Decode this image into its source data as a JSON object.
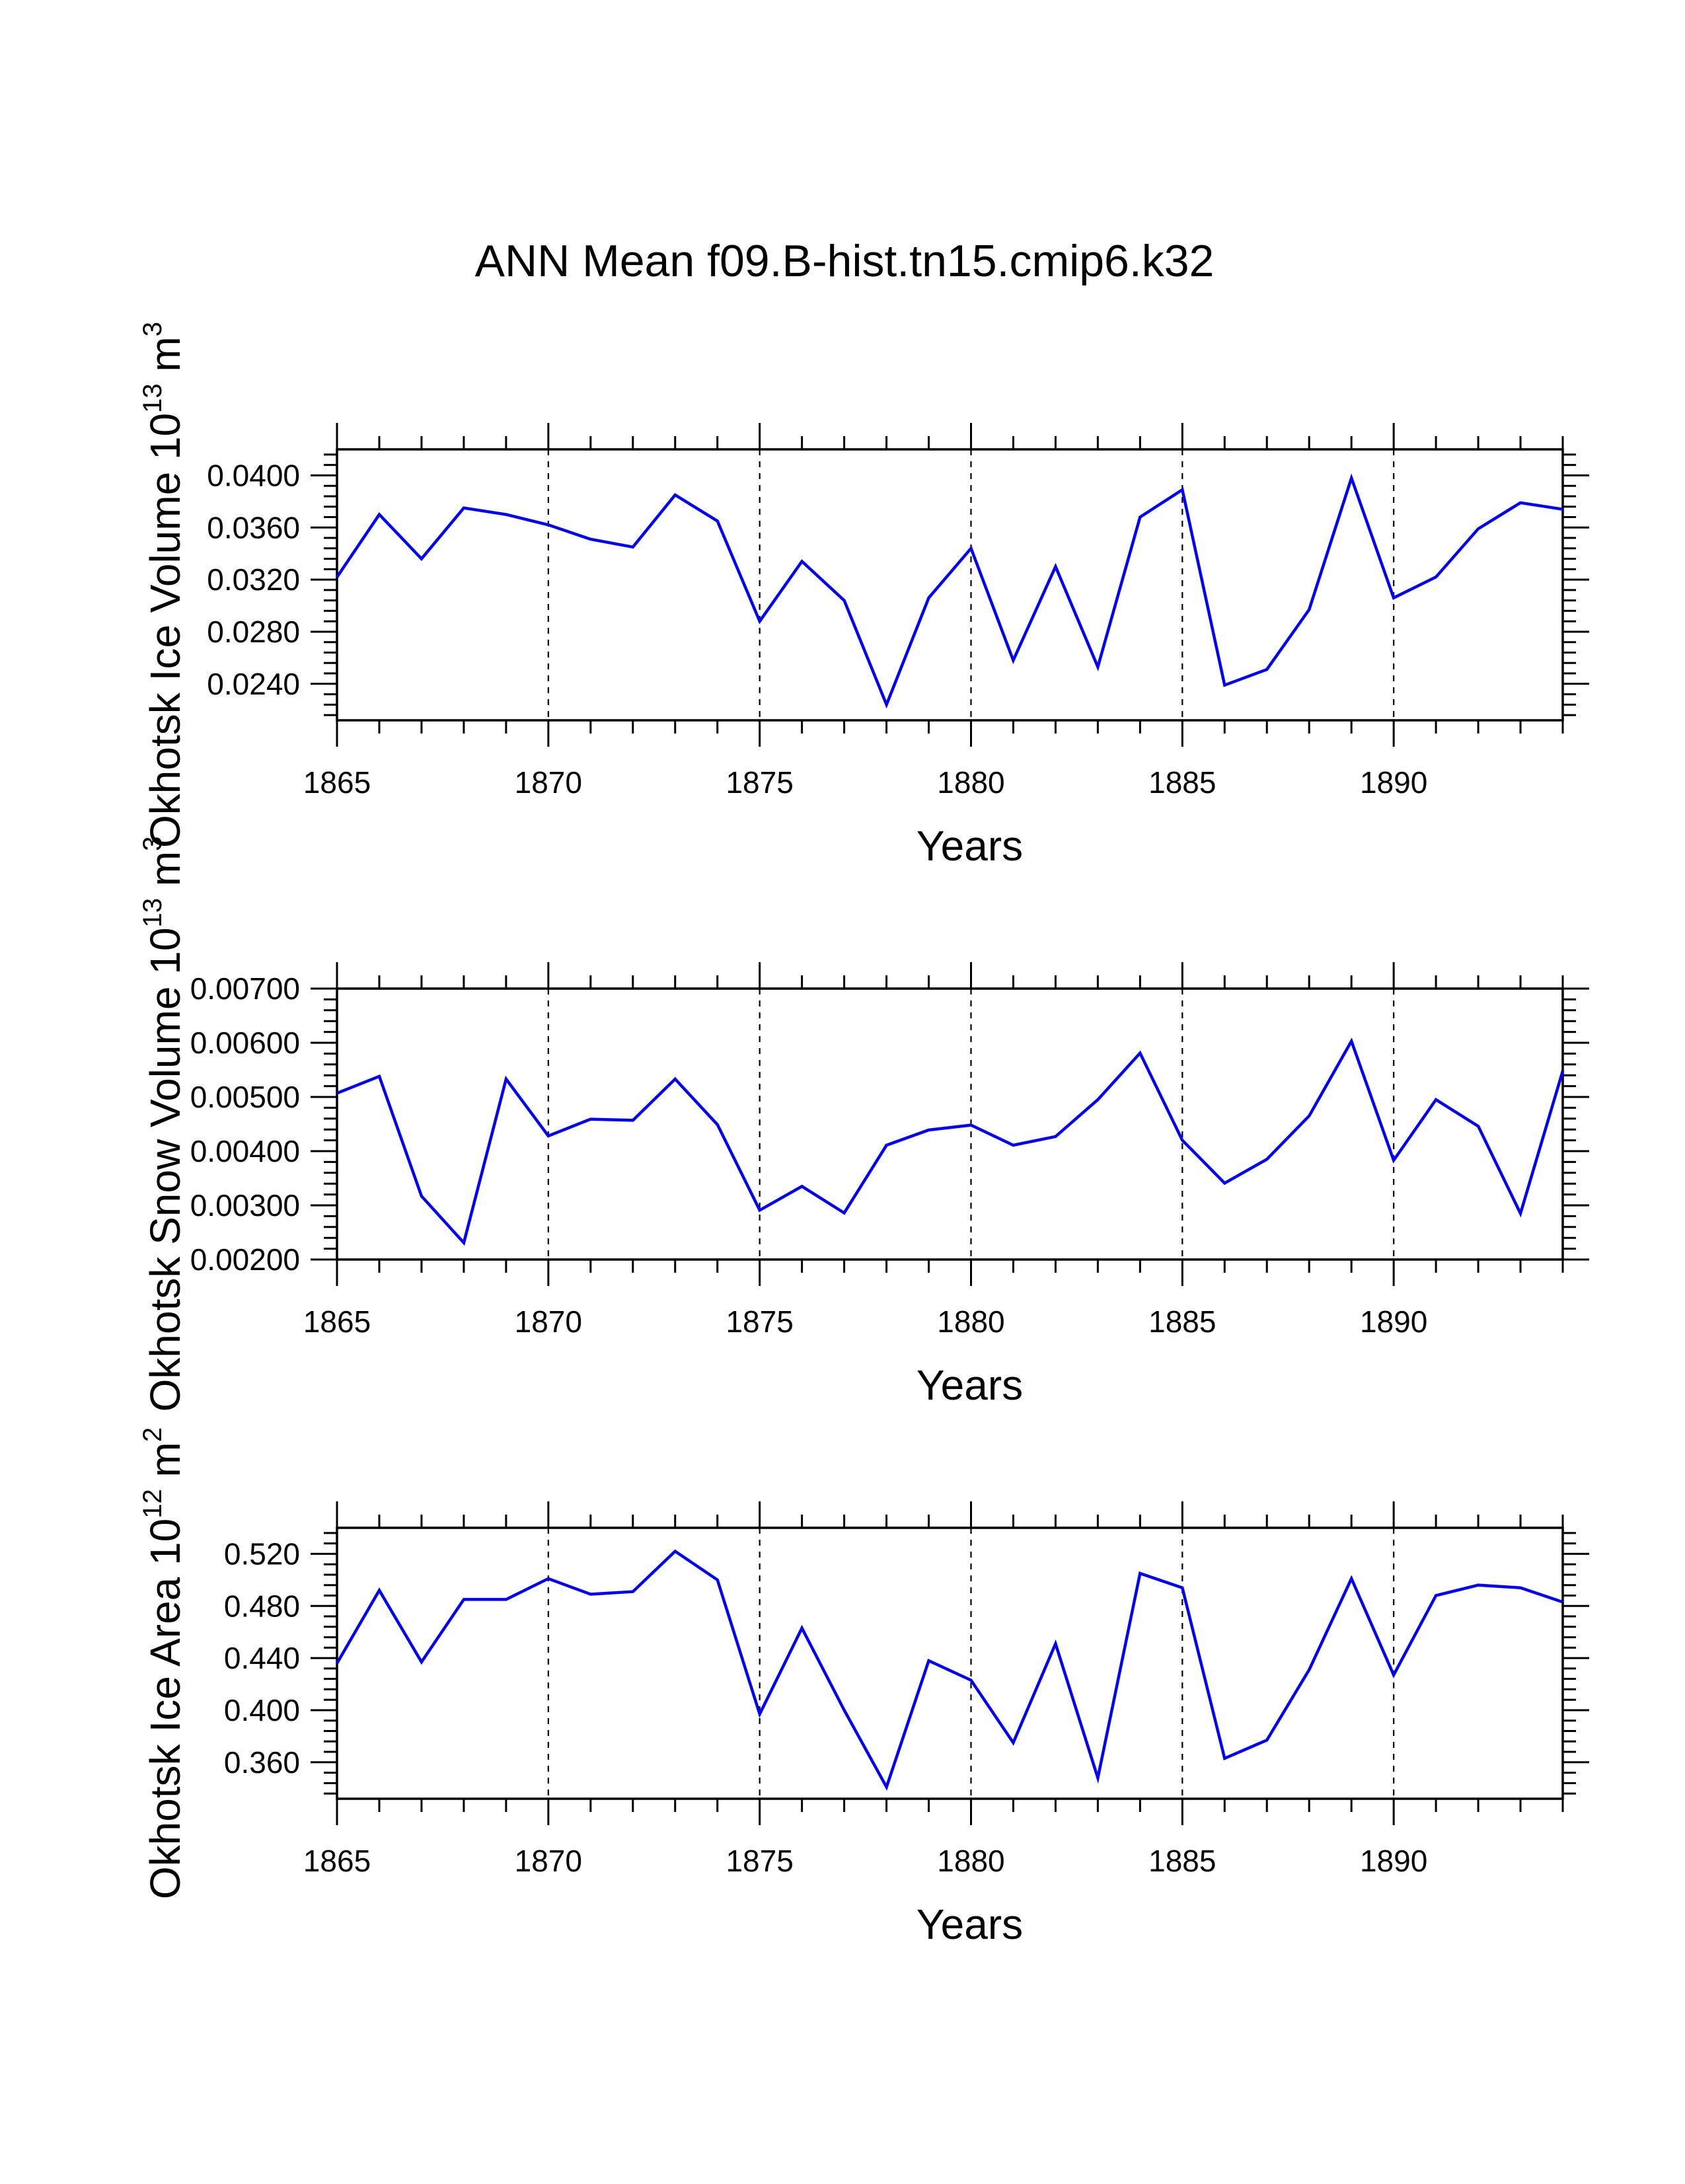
{
  "figure": {
    "title": "ANN Mean f09.B-hist.tn15.cmip6.k32",
    "line_color": "#0000ff"
  },
  "chart_data": [
    {
      "type": "line",
      "ylabel": "Okhotsk Ice Volume 10",
      "ylabel_exponent": "13",
      "ylabel_unit": "m",
      "ylabel_unit_power": "3",
      "xlabel": "Years",
      "xlim": [
        1865,
        1894
      ],
      "ylim": [
        0.0212,
        0.042
      ],
      "x_ticks": [
        1865,
        1870,
        1875,
        1880,
        1885,
        1890
      ],
      "y_ticks": [
        0.024,
        0.028,
        0.032,
        0.036,
        0.04
      ],
      "y_tick_labels": [
        "0.0240",
        "0.0280",
        "0.0320",
        "0.0360",
        "0.0400"
      ],
      "x": [
        1865,
        1866,
        1867,
        1868,
        1869,
        1870,
        1871,
        1872,
        1873,
        1874,
        1875,
        1876,
        1877,
        1878,
        1879,
        1880,
        1881,
        1882,
        1883,
        1884,
        1885,
        1886,
        1887,
        1888,
        1889,
        1890,
        1891,
        1892,
        1893,
        1894
      ],
      "values": [
        0.0322,
        0.037,
        0.0336,
        0.0375,
        0.037,
        0.0362,
        0.0351,
        0.0345,
        0.0385,
        0.0365,
        0.0288,
        0.0334,
        0.0304,
        0.0224,
        0.0306,
        0.0344,
        0.0258,
        0.033,
        0.0253,
        0.0368,
        0.0389,
        0.0239,
        0.0251,
        0.0297,
        0.0398,
        0.0306,
        0.0322,
        0.0359,
        0.0379,
        0.0374
      ]
    },
    {
      "type": "line",
      "ylabel": "Okhotsk Snow Volume 10",
      "ylabel_exponent": "13",
      "ylabel_unit": "m",
      "ylabel_unit_power": "3",
      "xlabel": "Years",
      "xlim": [
        1865,
        1894
      ],
      "ylim": [
        0.002,
        0.007
      ],
      "x_ticks": [
        1865,
        1870,
        1875,
        1880,
        1885,
        1890
      ],
      "y_ticks": [
        0.002,
        0.003,
        0.004,
        0.005,
        0.006,
        0.007
      ],
      "y_tick_labels": [
        "0.00200",
        "0.00300",
        "0.00400",
        "0.00500",
        "0.00600",
        "0.00700"
      ],
      "x": [
        1865,
        1866,
        1867,
        1868,
        1869,
        1870,
        1871,
        1872,
        1873,
        1874,
        1875,
        1876,
        1877,
        1878,
        1879,
        1880,
        1881,
        1882,
        1883,
        1884,
        1885,
        1886,
        1887,
        1888,
        1889,
        1890,
        1891,
        1892,
        1893,
        1894
      ],
      "values": [
        0.00507,
        0.00538,
        0.00317,
        0.00231,
        0.00533,
        0.00428,
        0.00459,
        0.00457,
        0.00533,
        0.00449,
        0.00291,
        0.00335,
        0.00286,
        0.00411,
        0.00439,
        0.00448,
        0.00411,
        0.00427,
        0.00495,
        0.00581,
        0.0042,
        0.00341,
        0.00385,
        0.00465,
        0.00603,
        0.00383,
        0.00495,
        0.00446,
        0.00285,
        0.00548
      ]
    },
    {
      "type": "line",
      "ylabel": "Okhotsk Ice Area 10",
      "ylabel_exponent": "12",
      "ylabel_unit": "m",
      "ylabel_unit_power": "2",
      "xlabel": "Years",
      "xlim": [
        1865,
        1894
      ],
      "ylim": [
        0.332,
        0.54
      ],
      "x_ticks": [
        1865,
        1870,
        1875,
        1880,
        1885,
        1890
      ],
      "y_ticks": [
        0.36,
        0.4,
        0.44,
        0.48,
        0.52
      ],
      "y_tick_labels": [
        "0.360",
        "0.400",
        "0.440",
        "0.480",
        "0.520"
      ],
      "x": [
        1865,
        1866,
        1867,
        1868,
        1869,
        1870,
        1871,
        1872,
        1873,
        1874,
        1875,
        1876,
        1877,
        1878,
        1879,
        1880,
        1881,
        1882,
        1883,
        1884,
        1885,
        1886,
        1887,
        1888,
        1889,
        1890,
        1891,
        1892,
        1893,
        1894
      ],
      "values": [
        0.436,
        0.492,
        0.437,
        0.485,
        0.485,
        0.501,
        0.489,
        0.491,
        0.522,
        0.5,
        0.397,
        0.463,
        0.4,
        0.341,
        0.438,
        0.423,
        0.375,
        0.451,
        0.348,
        0.505,
        0.494,
        0.363,
        0.377,
        0.431,
        0.501,
        0.427,
        0.488,
        0.496,
        0.494,
        0.483
      ]
    }
  ]
}
